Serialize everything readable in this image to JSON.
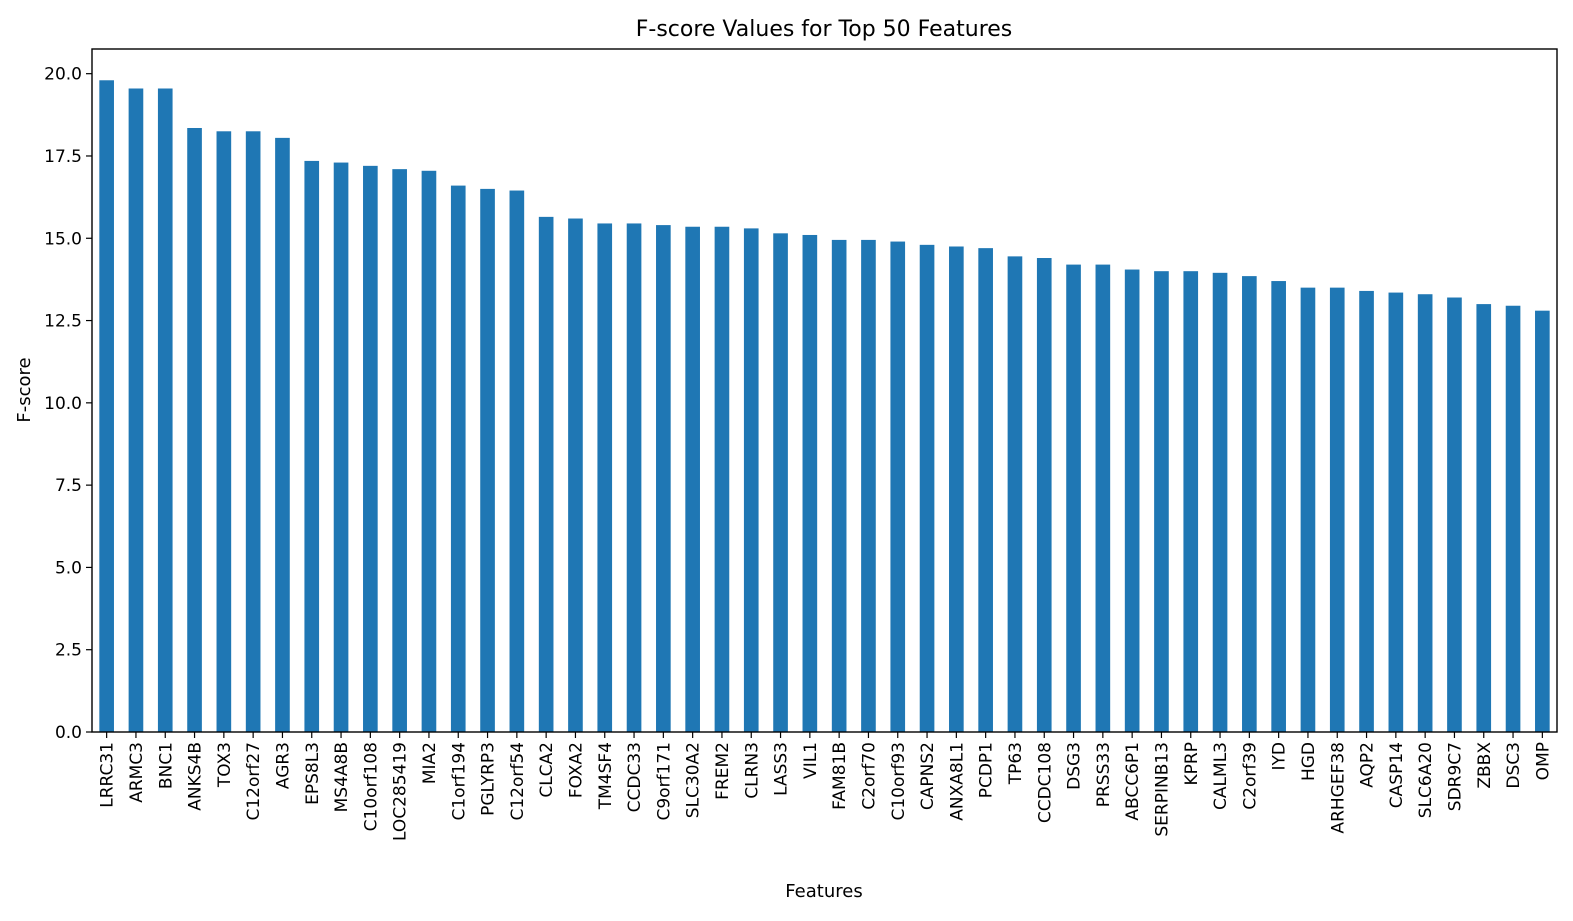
{
  "chart_data": {
    "type": "bar",
    "title": "F-score Values for Top 50 Features",
    "xlabel": "Features",
    "ylabel": "F-score",
    "ylim": [
      0,
      20.75
    ],
    "yticks": [
      "0.0",
      "2.5",
      "5.0",
      "7.5",
      "10.0",
      "12.5",
      "15.0",
      "17.5",
      "20.0"
    ],
    "grid": false,
    "legend": "none",
    "bar_color": "#1f77b4",
    "categories": [
      "LRRC31",
      "ARMC3",
      "BNC1",
      "ANKS4B",
      "TOX3",
      "C12orf27",
      "AGR3",
      "EPS8L3",
      "MS4A8B",
      "C10orf108",
      "LOC285419",
      "MIA2",
      "C1orf194",
      "PGLYRP3",
      "C12orf54",
      "CLCA2",
      "FOXA2",
      "TM4SF4",
      "CCDC33",
      "C9orf171",
      "SLC30A2",
      "FREM2",
      "CLRN3",
      "LASS3",
      "VIL1",
      "FAM81B",
      "C2orf70",
      "C10orf93",
      "CAPNS2",
      "ANXA8L1",
      "PCDP1",
      "TP63",
      "CCDC108",
      "DSG3",
      "PRSS33",
      "ABCC6P1",
      "SERPINB13",
      "KPRP",
      "CALML3",
      "C2orf39",
      "IYD",
      "HGD",
      "ARHGEF38",
      "AQP2",
      "CASP14",
      "SLC6A20",
      "SDR9C7",
      "ZBBX",
      "DSC3",
      "OMP"
    ],
    "values": [
      19.8,
      19.55,
      19.55,
      18.35,
      18.25,
      18.25,
      18.05,
      17.35,
      17.3,
      17.2,
      17.1,
      17.05,
      16.6,
      16.5,
      16.45,
      15.65,
      15.6,
      15.45,
      15.45,
      15.4,
      15.35,
      15.35,
      15.3,
      15.15,
      15.1,
      14.95,
      14.95,
      14.9,
      14.8,
      14.75,
      14.7,
      14.45,
      14.4,
      14.2,
      14.2,
      14.05,
      14.0,
      14.0,
      13.95,
      13.85,
      13.7,
      13.5,
      13.5,
      13.4,
      13.35,
      13.3,
      13.2,
      13.0,
      12.95,
      12.8
    ]
  }
}
